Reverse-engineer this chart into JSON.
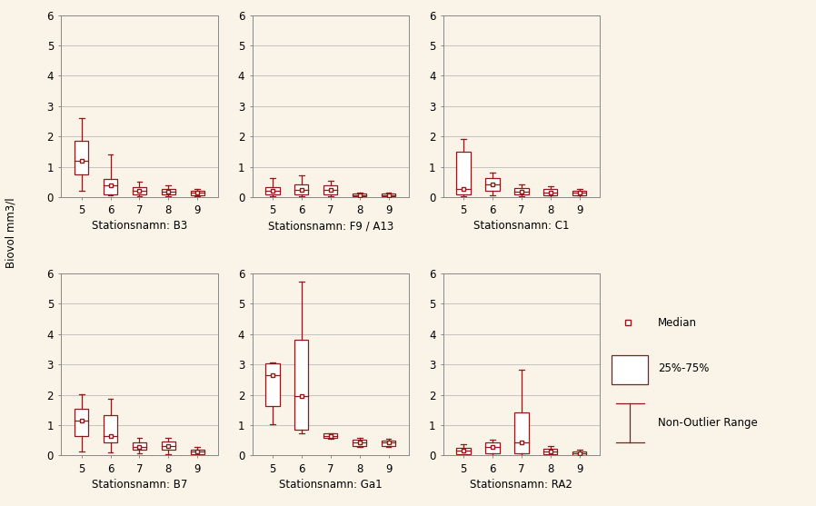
{
  "background_color": "#faf4e8",
  "box_color": "#8b1a1a",
  "label_fontsize": 8.5,
  "tick_fontsize": 8.5,
  "ylabel": "Biovol mm3/l",
  "months": [
    5,
    6,
    7,
    8,
    9
  ],
  "stations": [
    "B3",
    "F9 / A13",
    "C1",
    "B7",
    "Ga1",
    "RA2"
  ],
  "subtitles": [
    "Stationsnamn: B3",
    "Stationsnamn: F9 / A13",
    "Stationsnamn: C1",
    "Stationsnamn: B7",
    "Stationsnamn: Ga1",
    "Stationsnamn: RA2"
  ],
  "ylim": [
    0,
    6
  ],
  "yticks": [
    0,
    1,
    2,
    3,
    4,
    5,
    6
  ],
  "data": {
    "B3": {
      "5": {
        "q1": 0.75,
        "median": 1.2,
        "q3": 1.85,
        "whislo": 0.22,
        "whishi": 2.6
      },
      "6": {
        "q1": 0.1,
        "median": 0.38,
        "q3": 0.6,
        "whislo": 0.05,
        "whishi": 1.42
      },
      "7": {
        "q1": 0.1,
        "median": 0.2,
        "q3": 0.32,
        "whislo": 0.02,
        "whishi": 0.52
      },
      "8": {
        "q1": 0.08,
        "median": 0.18,
        "q3": 0.28,
        "whislo": 0.02,
        "whishi": 0.38
      },
      "9": {
        "q1": 0.05,
        "median": 0.15,
        "q3": 0.22,
        "whislo": 0.02,
        "whishi": 0.28
      }
    },
    "F9 / A13": {
      "5": {
        "q1": 0.1,
        "median": 0.22,
        "q3": 0.32,
        "whislo": 0.02,
        "whishi": 0.62
      },
      "6": {
        "q1": 0.1,
        "median": 0.25,
        "q3": 0.42,
        "whislo": 0.02,
        "whishi": 0.72
      },
      "7": {
        "q1": 0.1,
        "median": 0.25,
        "q3": 0.38,
        "whislo": 0.02,
        "whishi": 0.55
      },
      "8": {
        "q1": 0.02,
        "median": 0.06,
        "q3": 0.12,
        "whislo": 0.01,
        "whishi": 0.15
      },
      "9": {
        "q1": 0.02,
        "median": 0.06,
        "q3": 0.12,
        "whislo": 0.01,
        "whishi": 0.16
      }
    },
    "C1": {
      "5": {
        "q1": 0.08,
        "median": 0.28,
        "q3": 1.5,
        "whislo": 0.04,
        "whishi": 1.92
      },
      "6": {
        "q1": 0.22,
        "median": 0.42,
        "q3": 0.62,
        "whislo": 0.05,
        "whishi": 0.82
      },
      "7": {
        "q1": 0.08,
        "median": 0.18,
        "q3": 0.3,
        "whislo": 0.02,
        "whishi": 0.42
      },
      "8": {
        "q1": 0.06,
        "median": 0.16,
        "q3": 0.28,
        "whislo": 0.01,
        "whishi": 0.35
      },
      "9": {
        "q1": 0.06,
        "median": 0.14,
        "q3": 0.22,
        "whislo": 0.01,
        "whishi": 0.28
      }
    },
    "B7": {
      "5": {
        "q1": 0.65,
        "median": 1.15,
        "q3": 1.55,
        "whislo": 0.12,
        "whishi": 2.02
      },
      "6": {
        "q1": 0.42,
        "median": 0.65,
        "q3": 1.32,
        "whislo": 0.1,
        "whishi": 1.88
      },
      "7": {
        "q1": 0.18,
        "median": 0.28,
        "q3": 0.42,
        "whislo": 0.08,
        "whishi": 0.58
      },
      "8": {
        "q1": 0.2,
        "median": 0.32,
        "q3": 0.45,
        "whislo": 0.05,
        "whishi": 0.58
      },
      "9": {
        "q1": 0.05,
        "median": 0.12,
        "q3": 0.2,
        "whislo": 0.01,
        "whishi": 0.28
      }
    },
    "Ga1": {
      "5": {
        "q1": 1.62,
        "median": 2.65,
        "q3": 3.05,
        "whislo": 1.02,
        "whishi": 3.08
      },
      "6": {
        "q1": 0.85,
        "median": 1.95,
        "q3": 3.82,
        "whislo": 0.72,
        "whishi": 5.72
      },
      "7": {
        "q1": 0.58,
        "median": 0.65,
        "q3": 0.72,
        "whislo": 0.55,
        "whishi": 0.72
      },
      "8": {
        "q1": 0.32,
        "median": 0.42,
        "q3": 0.52,
        "whislo": 0.28,
        "whishi": 0.58
      },
      "9": {
        "q1": 0.32,
        "median": 0.42,
        "q3": 0.5,
        "whislo": 0.28,
        "whishi": 0.55
      }
    },
    "RA2": {
      "5": {
        "q1": 0.05,
        "median": 0.15,
        "q3": 0.25,
        "whislo": 0.01,
        "whishi": 0.38
      },
      "6": {
        "q1": 0.08,
        "median": 0.28,
        "q3": 0.42,
        "whislo": 0.01,
        "whishi": 0.52
      },
      "7": {
        "q1": 0.08,
        "median": 0.42,
        "q3": 1.42,
        "whislo": 0.02,
        "whishi": 2.82
      },
      "8": {
        "q1": 0.05,
        "median": 0.12,
        "q3": 0.22,
        "whislo": 0.01,
        "whishi": 0.3
      },
      "9": {
        "q1": 0.02,
        "median": 0.08,
        "q3": 0.14,
        "whislo": 0.01,
        "whishi": 0.2
      }
    }
  }
}
